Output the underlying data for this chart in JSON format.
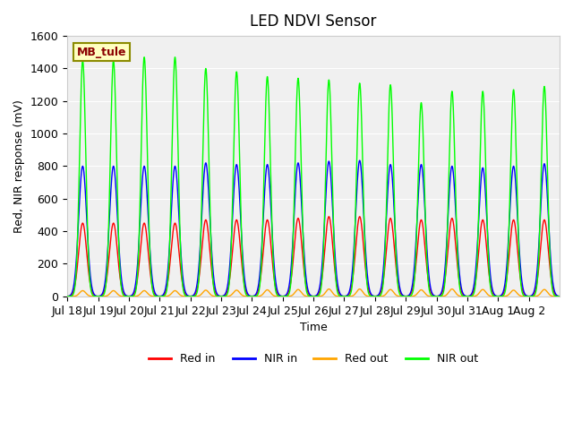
{
  "title": "LED NDVI Sensor",
  "xlabel": "Time",
  "ylabel": "Red, NIR response (mV)",
  "ylim": [
    0,
    1600
  ],
  "annotation": "MB_tule",
  "background_color": "#f0f0f0",
  "legend_entries": [
    "Red in",
    "NIR in",
    "Red out",
    "NIR out"
  ],
  "legend_colors": [
    "#ff0000",
    "#0000ff",
    "#ffa500",
    "#00ff00"
  ],
  "x_tick_labels": [
    "Jul 18",
    "Jul 19",
    "Jul 20",
    "Jul 21",
    "Jul 22",
    "Jul 23",
    "Jul 24",
    "Jul 25",
    "Jul 26",
    "Jul 27",
    "Jul 28",
    "Jul 29",
    "Jul 30",
    "Jul 31",
    "Aug 1",
    "Aug 2"
  ],
  "days": 16,
  "peaks_red_in": [
    450,
    450,
    450,
    450,
    470,
    470,
    470,
    480,
    490,
    490,
    480,
    470,
    480,
    470,
    470,
    470
  ],
  "peaks_nir_in": [
    800,
    800,
    800,
    800,
    820,
    810,
    810,
    820,
    830,
    835,
    810,
    810,
    800,
    790,
    800,
    815
  ],
  "peaks_red_out": [
    35,
    35,
    35,
    35,
    38,
    38,
    40,
    42,
    45,
    45,
    42,
    40,
    45,
    42,
    38,
    42
  ],
  "peaks_nir_out": [
    1450,
    1450,
    1470,
    1470,
    1400,
    1380,
    1350,
    1340,
    1330,
    1310,
    1300,
    1190,
    1260,
    1260,
    1270,
    1290
  ]
}
